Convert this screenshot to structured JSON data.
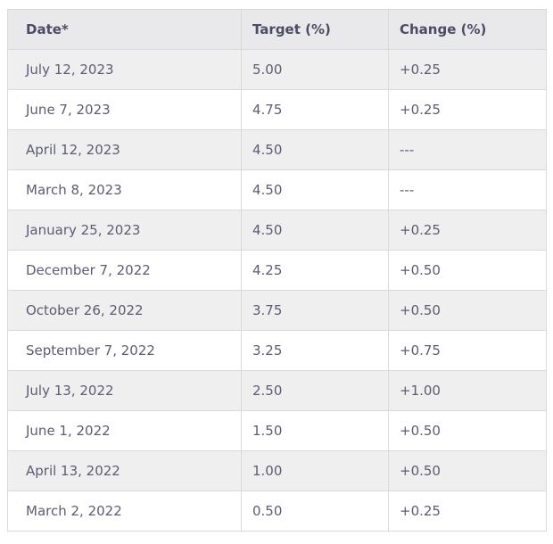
{
  "chart_data": {
    "type": "table",
    "columns": [
      "Date*",
      "Target (%)",
      "Change (%)"
    ],
    "rows": [
      [
        "July 12, 2023",
        "5.00",
        "+0.25"
      ],
      [
        "June 7, 2023",
        "4.75",
        "+0.25"
      ],
      [
        "April 12, 2023",
        "4.50",
        "---"
      ],
      [
        "March 8, 2023",
        "4.50",
        "---"
      ],
      [
        "January 25, 2023",
        "4.50",
        "+0.25"
      ],
      [
        "December 7, 2022",
        "4.25",
        "+0.50"
      ],
      [
        "October 26, 2022",
        "3.75",
        "+0.50"
      ],
      [
        "September 7, 2022",
        "3.25",
        "+0.75"
      ],
      [
        "July 13, 2022",
        "2.50",
        "+1.00"
      ],
      [
        "June 1, 2022",
        "1.50",
        "+0.50"
      ],
      [
        "April 13, 2022",
        "1.00",
        "+0.50"
      ],
      [
        "March 2, 2022",
        "0.50",
        "+0.25"
      ]
    ]
  },
  "table": {
    "headers": {
      "date": "Date*",
      "target": "Target (%)",
      "change": "Change (%)"
    },
    "rows": [
      {
        "date": "July 12, 2023",
        "target": "5.00",
        "change": "+0.25"
      },
      {
        "date": "June 7, 2023",
        "target": "4.75",
        "change": "+0.25"
      },
      {
        "date": "April 12, 2023",
        "target": "4.50",
        "change": "---"
      },
      {
        "date": "March 8, 2023",
        "target": "4.50",
        "change": "---"
      },
      {
        "date": "January 25, 2023",
        "target": "4.50",
        "change": "+0.25"
      },
      {
        "date": "December 7, 2022",
        "target": "4.25",
        "change": "+0.50"
      },
      {
        "date": "October 26, 2022",
        "target": "3.75",
        "change": "+0.50"
      },
      {
        "date": "September 7, 2022",
        "target": "3.25",
        "change": "+0.75"
      },
      {
        "date": "July 13, 2022",
        "target": "2.50",
        "change": "+1.00"
      },
      {
        "date": "June 1, 2022",
        "target": "1.50",
        "change": "+0.50"
      },
      {
        "date": "April 13, 2022",
        "target": "1.00",
        "change": "+0.50"
      },
      {
        "date": "March 2, 2022",
        "target": "0.50",
        "change": "+0.25"
      }
    ],
    "colors": {
      "header_bg": "#e9e9eb",
      "stripe_bg": "#efefef",
      "row_bg": "#ffffff",
      "border": "#d9d9d9",
      "header_text": "#4c4c66",
      "body_text": "#5c5c75"
    }
  }
}
